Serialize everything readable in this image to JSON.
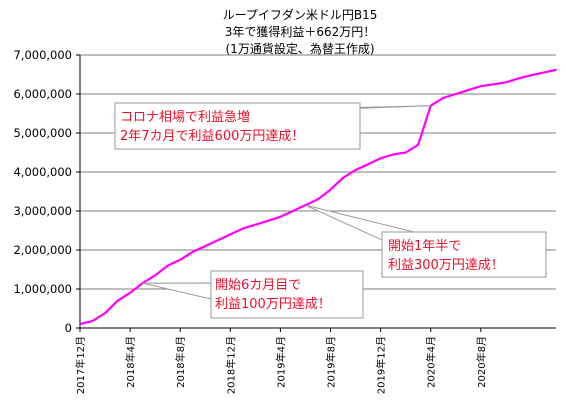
{
  "chart_data": {
    "type": "line",
    "title": [
      "ループイフダン米ドル円B15",
      "3年で獲得利益＋662万円！",
      "(1万通貨設定、為替王作成)"
    ],
    "ylim": [
      0,
      7000000
    ],
    "yticks": [
      "0",
      "1,000,000",
      "2,000,000",
      "3,000,000",
      "4,000,000",
      "5,000,000",
      "6,000,000",
      "7,000,000"
    ],
    "xlim": [
      "2017-12",
      "2021-02"
    ],
    "xticks": [
      "2017年12月",
      "2018年4月",
      "2018年8月",
      "2018年12月",
      "2019年4月",
      "2019年8月",
      "2019年12月",
      "2020年4月",
      "2020年8月"
    ],
    "grid": "horizontal",
    "series": [
      {
        "color": "#ff00ff",
        "x": [
          "2017-12",
          "2018-01",
          "2018-02",
          "2018-03",
          "2018-04",
          "2018-05",
          "2018-06",
          "2018-07",
          "2018-08",
          "2018-09",
          "2018-10",
          "2018-11",
          "2018-12",
          "2019-01",
          "2019-02",
          "2019-03",
          "2019-04",
          "2019-05",
          "2019-06",
          "2019-07",
          "2019-08",
          "2019-09",
          "2019-10",
          "2019-11",
          "2019-12",
          "2020-01",
          "2020-02",
          "2020-03",
          "2020-04",
          "2020-05",
          "2020-06",
          "2020-07",
          "2020-08",
          "2020-09",
          "2020-10",
          "2020-11",
          "2020-12",
          "2021-01",
          "2021-02"
        ],
        "values": [
          100000,
          180000,
          380000,
          700000,
          900000,
          1150000,
          1350000,
          1600000,
          1750000,
          1950000,
          2100000,
          2250000,
          2400000,
          2550000,
          2650000,
          2750000,
          2850000,
          3000000,
          3150000,
          3300000,
          3550000,
          3850000,
          4050000,
          4200000,
          4350000,
          4450000,
          4500000,
          4700000,
          5700000,
          5900000,
          6000000,
          6100000,
          6200000,
          6250000,
          6300000,
          6400000,
          6480000,
          6550000,
          6620000
        ]
      }
    ],
    "annotations": [
      {
        "lines": [
          "コロナ相場で利益急増",
          "2年7カ月で利益600万円達成！"
        ],
        "target": "2020-04"
      },
      {
        "lines": [
          "開始1年半で",
          "利益300万円達成！"
        ],
        "target": "2019-06"
      },
      {
        "lines": [
          "開始6カ月目で",
          "利益100万円達成！"
        ],
        "target": "2018-05"
      }
    ]
  }
}
